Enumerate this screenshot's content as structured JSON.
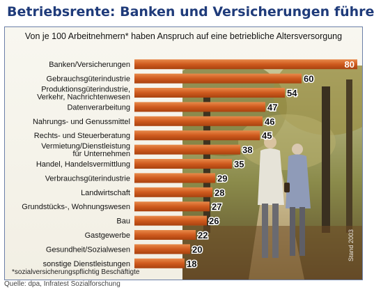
{
  "title": "Betriebsrente: Banken und Versicherungen führen",
  "footnote": "*sozialversicherungspflichtig Beschäftigte",
  "photo_credit": "Stand 2003",
  "source": "Quelle: dpa, Infratest Sozialforschung",
  "colors": {
    "bar": "#cf5a1e",
    "bar_light": "#e88a4a",
    "title": "#1f3b7a",
    "frame": "#6b7fa8"
  },
  "chart_data": {
    "type": "bar",
    "orientation": "horizontal",
    "title": "Von je 100 Arbeitnehmern* haben Anspruch auf eine betriebliche Altersversorgung",
    "categories": [
      "Banken/Versicherungen",
      "Gebrauchsgüterindustrie",
      "Produktionsgüterindustrie,\nVerkehr, Nachrichtenwesen",
      "Datenverarbeitung",
      "Nahrungs- und Genussmittel",
      "Rechts- und Steuerberatung",
      "Vermietung/Dienstleistung\nfür Unternehmen",
      "Handel, Handelsvermittlung",
      "Verbrauchsgüterindustrie",
      "Landwirtschaft",
      "Grundstücks-, Wohnungswesen",
      "Bau",
      "Gastgewerbe",
      "Gesundheit/Sozialwesen",
      "sonstige Dienstleistungen"
    ],
    "values": [
      80,
      60,
      54,
      47,
      46,
      45,
      38,
      35,
      29,
      28,
      27,
      26,
      22,
      20,
      18
    ],
    "xlim": [
      0,
      80
    ],
    "grid": false,
    "legend": "none"
  }
}
